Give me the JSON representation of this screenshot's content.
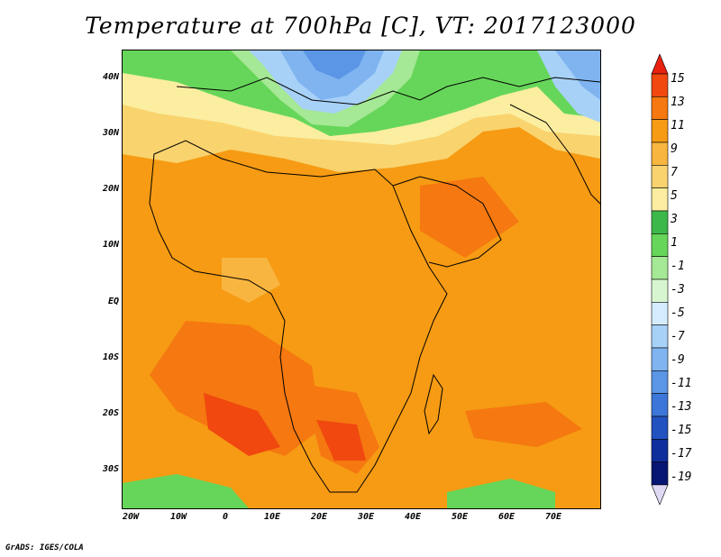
{
  "title": "Temperature at 700hPa [C], VT: 2017123000",
  "credit": "GrADS: IGES/COLA",
  "map": {
    "type": "filled-contour",
    "variable": "Temperature at 700hPa",
    "units": "C",
    "region": "Africa",
    "lon_range": [
      -22,
      80
    ],
    "lat_range": [
      -37,
      45
    ],
    "lat_ticks": [
      "40N",
      "30N",
      "20N",
      "10N",
      "EQ",
      "10S",
      "20S",
      "30S"
    ],
    "lon_ticks": [
      "20W",
      "10W",
      "0",
      "10E",
      "20E",
      "30E",
      "40E",
      "50E",
      "60E",
      "70E"
    ]
  },
  "colorbar": {
    "labels": [
      "15",
      "13",
      "11",
      "9",
      "7",
      "5",
      "3",
      "1",
      "-1",
      "-3",
      "-5",
      "-7",
      "-9",
      "-11",
      "-13",
      "-15",
      "-17",
      "-19"
    ],
    "colors": [
      "#e8220f",
      "#f0480f",
      "#f57810",
      "#f69b13",
      "#f8b540",
      "#f9d36e",
      "#fbeea0",
      "#3cb84a",
      "#66d65a",
      "#a5e895",
      "#d7f6d0",
      "#d5ecff",
      "#a8d1f8",
      "#7fb4f0",
      "#5a95e6",
      "#3c76d8",
      "#2252bf",
      "#0f2f9c",
      "#071672",
      "#e0d9f5"
    ]
  }
}
